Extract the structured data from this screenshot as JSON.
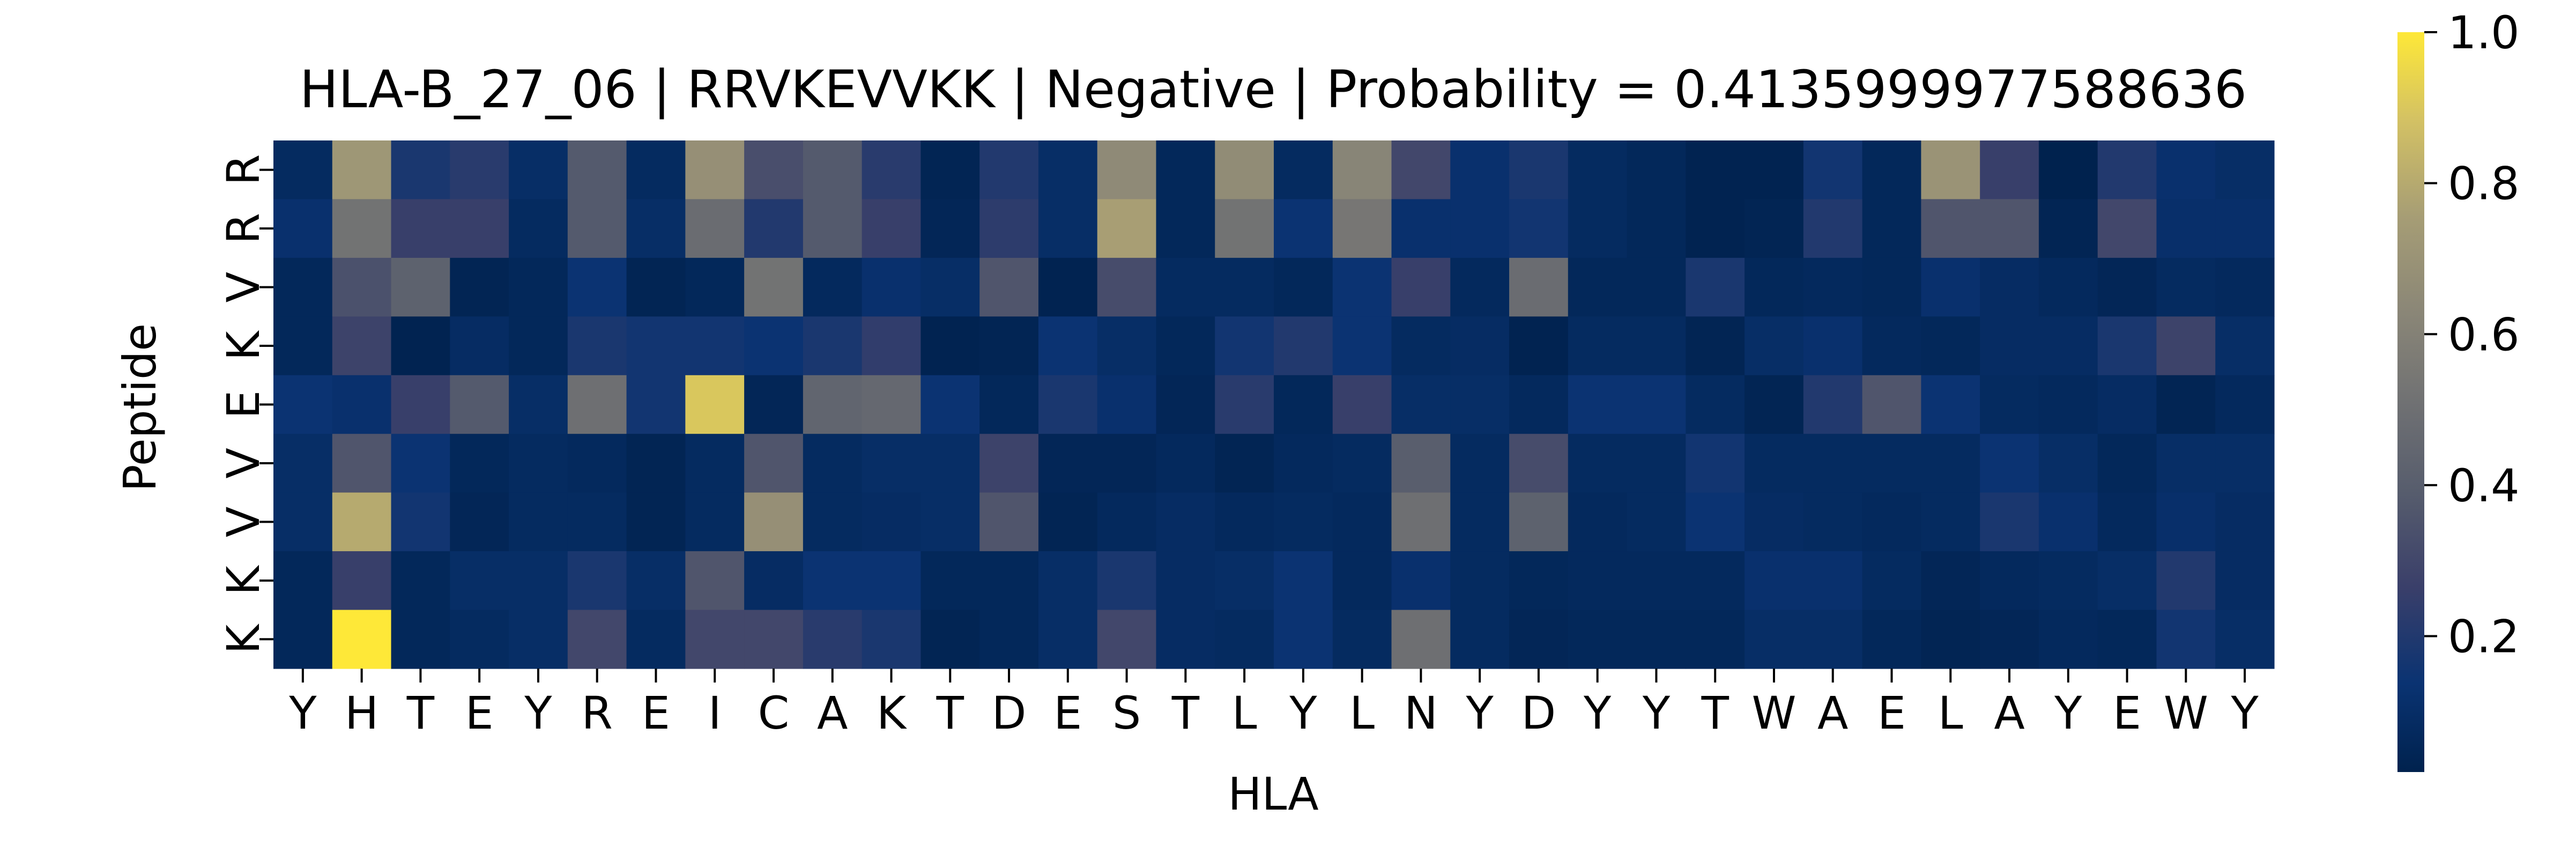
{
  "chart_data": {
    "type": "heatmap",
    "title": "HLA-B_27_06 | RRVKEVVKK | Negative | Probability = 0.4135999977588636",
    "xlabel": "HLA",
    "ylabel": "Peptide",
    "x_categories": [
      "Y",
      "H",
      "T",
      "E",
      "Y",
      "R",
      "E",
      "I",
      "C",
      "A",
      "K",
      "T",
      "D",
      "E",
      "S",
      "T",
      "L",
      "Y",
      "L",
      "N",
      "Y",
      "D",
      "Y",
      "Y",
      "T",
      "W",
      "A",
      "E",
      "L",
      "A",
      "Y",
      "E",
      "W",
      "Y"
    ],
    "y_categories": [
      "R",
      "R",
      "V",
      "K",
      "E",
      "V",
      "V",
      "K",
      "K"
    ],
    "colormap": "cividis",
    "colorbar": {
      "range": [
        0.02,
        1.0
      ],
      "ticks": [
        0.2,
        0.4,
        0.6,
        0.8,
        1.0
      ],
      "tick_labels": [
        "0.2",
        "0.4",
        "0.6",
        "0.8",
        "1.0"
      ]
    },
    "values": [
      [
        0.08,
        0.72,
        0.18,
        0.22,
        0.1,
        0.38,
        0.08,
        0.68,
        0.33,
        0.38,
        0.22,
        0.04,
        0.2,
        0.1,
        0.65,
        0.06,
        0.66,
        0.08,
        0.62,
        0.3,
        0.12,
        0.18,
        0.08,
        0.06,
        0.03,
        0.03,
        0.16,
        0.06,
        0.7,
        0.26,
        0.02,
        0.2,
        0.12,
        0.1
      ],
      [
        0.12,
        0.52,
        0.26,
        0.26,
        0.08,
        0.38,
        0.1,
        0.48,
        0.2,
        0.38,
        0.26,
        0.05,
        0.23,
        0.1,
        0.76,
        0.06,
        0.52,
        0.14,
        0.54,
        0.12,
        0.12,
        0.16,
        0.08,
        0.06,
        0.03,
        0.04,
        0.2,
        0.06,
        0.36,
        0.36,
        0.04,
        0.3,
        0.11,
        0.11
      ],
      [
        0.06,
        0.34,
        0.42,
        0.04,
        0.06,
        0.14,
        0.04,
        0.06,
        0.52,
        0.07,
        0.12,
        0.1,
        0.36,
        0.03,
        0.32,
        0.08,
        0.08,
        0.06,
        0.14,
        0.26,
        0.07,
        0.48,
        0.06,
        0.06,
        0.18,
        0.06,
        0.07,
        0.06,
        0.12,
        0.09,
        0.07,
        0.05,
        0.08,
        0.07
      ],
      [
        0.06,
        0.28,
        0.03,
        0.09,
        0.06,
        0.18,
        0.16,
        0.16,
        0.14,
        0.18,
        0.24,
        0.03,
        0.04,
        0.14,
        0.1,
        0.06,
        0.16,
        0.2,
        0.14,
        0.08,
        0.09,
        0.03,
        0.08,
        0.08,
        0.04,
        0.1,
        0.12,
        0.07,
        0.06,
        0.09,
        0.09,
        0.18,
        0.28,
        0.1
      ],
      [
        0.14,
        0.12,
        0.26,
        0.38,
        0.1,
        0.5,
        0.16,
        0.9,
        0.05,
        0.44,
        0.46,
        0.14,
        0.06,
        0.18,
        0.12,
        0.05,
        0.22,
        0.06,
        0.26,
        0.1,
        0.1,
        0.07,
        0.14,
        0.14,
        0.08,
        0.04,
        0.2,
        0.36,
        0.14,
        0.08,
        0.07,
        0.09,
        0.04,
        0.07
      ],
      [
        0.1,
        0.36,
        0.14,
        0.06,
        0.08,
        0.07,
        0.04,
        0.08,
        0.36,
        0.08,
        0.1,
        0.1,
        0.28,
        0.05,
        0.05,
        0.07,
        0.04,
        0.07,
        0.08,
        0.4,
        0.08,
        0.32,
        0.08,
        0.08,
        0.16,
        0.08,
        0.08,
        0.08,
        0.08,
        0.14,
        0.1,
        0.06,
        0.1,
        0.1
      ],
      [
        0.1,
        0.8,
        0.16,
        0.05,
        0.08,
        0.08,
        0.04,
        0.08,
        0.68,
        0.08,
        0.09,
        0.1,
        0.36,
        0.04,
        0.07,
        0.09,
        0.07,
        0.08,
        0.07,
        0.5,
        0.08,
        0.42,
        0.07,
        0.08,
        0.14,
        0.09,
        0.08,
        0.07,
        0.08,
        0.18,
        0.12,
        0.07,
        0.11,
        0.09
      ],
      [
        0.06,
        0.26,
        0.06,
        0.1,
        0.1,
        0.18,
        0.1,
        0.36,
        0.09,
        0.14,
        0.14,
        0.06,
        0.06,
        0.1,
        0.18,
        0.09,
        0.1,
        0.14,
        0.07,
        0.12,
        0.08,
        0.06,
        0.07,
        0.07,
        0.07,
        0.12,
        0.12,
        0.08,
        0.05,
        0.07,
        0.08,
        0.1,
        0.2,
        0.09
      ],
      [
        0.06,
        1.0,
        0.06,
        0.08,
        0.1,
        0.3,
        0.08,
        0.3,
        0.3,
        0.22,
        0.18,
        0.04,
        0.06,
        0.1,
        0.3,
        0.09,
        0.08,
        0.14,
        0.08,
        0.5,
        0.08,
        0.05,
        0.06,
        0.06,
        0.06,
        0.1,
        0.1,
        0.06,
        0.04,
        0.05,
        0.07,
        0.06,
        0.16,
        0.1
      ]
    ]
  }
}
